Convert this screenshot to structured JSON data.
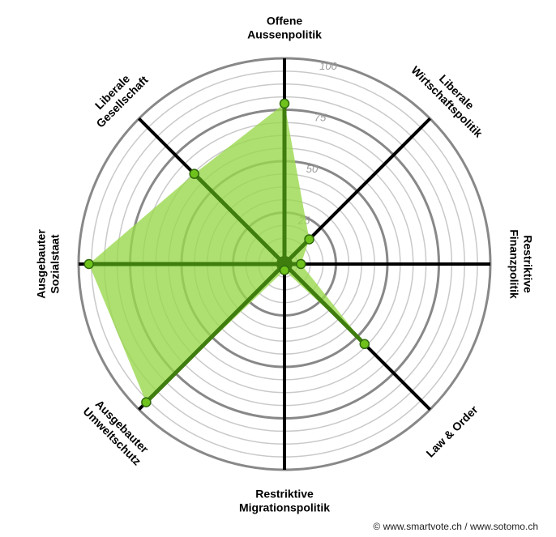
{
  "chart_data": {
    "type": "radar",
    "range": [
      0,
      100
    ],
    "tick_values": [
      25,
      50,
      75,
      100
    ],
    "tick_labels": [
      "25",
      "50",
      "75",
      "100"
    ],
    "grid_ring_step": 6.25,
    "major_ring_values": [
      25,
      50,
      75,
      100
    ],
    "axes": [
      {
        "label_lines": [
          "Offene",
          "Aussenpolitik"
        ],
        "value": 78
      },
      {
        "label_lines": [
          "Liberale",
          "Wirtschaftspolitik"
        ],
        "value": 17
      },
      {
        "label_lines": [
          "Restriktive",
          "Finanzpolitik"
        ],
        "value": 8
      },
      {
        "label_lines": [
          "Law & Order"
        ],
        "value": 55
      },
      {
        "label_lines": [
          "Restriktive",
          "Migrationspolitik"
        ],
        "value": 3
      },
      {
        "label_lines": [
          "Ausgebauter",
          "Umweltschutz"
        ],
        "value": 95
      },
      {
        "label_lines": [
          "Ausgebauter",
          "Sozialstaat"
        ],
        "value": 95
      },
      {
        "label_lines": [
          "Liberale",
          "Gesellschaft"
        ],
        "value": 62
      }
    ],
    "colors": {
      "fill": "#9ad84e",
      "fill_opacity": 0.8,
      "data_spoke": "#3f7d0f",
      "marker_fill": "#6fc21c",
      "marker_stroke": "#2f6a0c",
      "axis_spoke": "#000000",
      "major_ring": "#888888",
      "minor_ring": "#c9c9c9"
    }
  },
  "footer": {
    "credit": "© www.smartvote.ch / www.sotomo.ch"
  }
}
